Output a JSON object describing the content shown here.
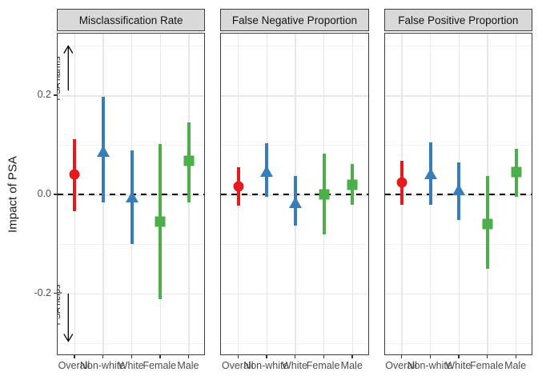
{
  "chart_data": {
    "type": "scatter",
    "subtype": "pointrange-facets",
    "ylabel": "Impact of PSA",
    "ylim": [
      -0.325,
      0.325
    ],
    "yticks": [
      {
        "value": 0.2,
        "label": "0.2"
      },
      {
        "value": 0.0,
        "label": "0.0"
      },
      {
        "value": -0.2,
        "label": "-0.2"
      }
    ],
    "y_major_gridlines": [
      0.2,
      0.0,
      -0.2
    ],
    "y_minor_gridlines": [
      0.3,
      0.1,
      -0.1,
      -0.3
    ],
    "reference_line": {
      "y": 0.0,
      "style": "dashed",
      "color": "#000000"
    },
    "categories": [
      "Overall",
      "Non-white",
      "White",
      "Female",
      "Male"
    ],
    "category_styles": [
      {
        "category": "Overall",
        "color": "#E41A1C",
        "shape": "circle"
      },
      {
        "category": "Non-white",
        "color": "#377EB8",
        "shape": "triangle"
      },
      {
        "category": "White",
        "color": "#377EB8",
        "shape": "triangle"
      },
      {
        "category": "Female",
        "color": "#4DAF4A",
        "shape": "square"
      },
      {
        "category": "Male",
        "color": "#4DAF4A",
        "shape": "square"
      }
    ],
    "facets": [
      {
        "label": "Misclassification Rate",
        "points": [
          {
            "category": "Overall",
            "estimate": 0.04,
            "lower": -0.033,
            "upper": 0.112
          },
          {
            "category": "Non-white",
            "estimate": 0.088,
            "lower": -0.015,
            "upper": 0.198
          },
          {
            "category": "White",
            "estimate": -0.004,
            "lower": -0.1,
            "upper": 0.089
          },
          {
            "category": "Female",
            "estimate": -0.055,
            "lower": -0.211,
            "upper": 0.102
          },
          {
            "category": "Male",
            "estimate": 0.068,
            "lower": -0.015,
            "upper": 0.145
          }
        ]
      },
      {
        "label": "False Negative Proportion",
        "points": [
          {
            "category": "Overall",
            "estimate": 0.016,
            "lower": -0.023,
            "upper": 0.055
          },
          {
            "category": "Non-white",
            "estimate": 0.047,
            "lower": -0.005,
            "upper": 0.104
          },
          {
            "category": "White",
            "estimate": -0.015,
            "lower": -0.063,
            "upper": 0.037
          },
          {
            "category": "Female",
            "estimate": 0.0,
            "lower": -0.081,
            "upper": 0.082
          },
          {
            "category": "Male",
            "estimate": 0.019,
            "lower": -0.021,
            "upper": 0.062
          }
        ]
      },
      {
        "label": "False Positive Proportion",
        "points": [
          {
            "category": "Overall",
            "estimate": 0.025,
            "lower": -0.021,
            "upper": 0.068
          },
          {
            "category": "Non-white",
            "estimate": 0.043,
            "lower": -0.02,
            "upper": 0.106
          },
          {
            "category": "White",
            "estimate": 0.01,
            "lower": -0.051,
            "upper": 0.065
          },
          {
            "category": "Female",
            "estimate": -0.059,
            "lower": -0.149,
            "upper": 0.038
          },
          {
            "category": "Male",
            "estimate": 0.045,
            "lower": -0.004,
            "upper": 0.093
          }
        ]
      }
    ],
    "annotations": [
      {
        "text": "PSA harms",
        "arrow": "up",
        "facet": 0,
        "text_y": 0.235,
        "arrow_from": 0.21,
        "arrow_to": 0.3
      },
      {
        "text": "PSA helps",
        "arrow": "down",
        "facet": 0,
        "text_y": -0.223,
        "arrow_from": -0.2,
        "arrow_to": -0.296
      }
    ],
    "layout_hints": {
      "grid": true,
      "legend": "none",
      "strip_background": "#d9d9d9"
    }
  }
}
